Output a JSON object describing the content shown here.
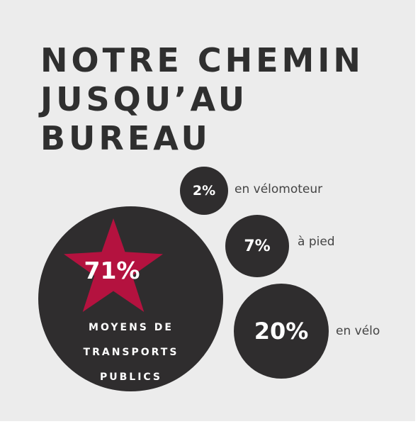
{
  "title": {
    "lines": [
      "NOTRE CHEMIN",
      "JUSQU’AU",
      "BUREAU"
    ]
  },
  "stats": {
    "velomoteur": {
      "value": "2%",
      "label": "en vélomoteur"
    },
    "pied": {
      "value": "7%",
      "label": "à pied"
    },
    "velo": {
      "value": "20%",
      "label": "en vélo"
    },
    "transports": {
      "value": "71%",
      "label_lines": [
        "MOYENS DE",
        "TRANSPORTS",
        "PUBLICS"
      ]
    }
  },
  "colors": {
    "background": "#ececec",
    "circle": "#2f2d2e",
    "star": "#b4123f",
    "text_dark": "#2f2f2f"
  },
  "icons": {
    "star": "star-icon"
  }
}
